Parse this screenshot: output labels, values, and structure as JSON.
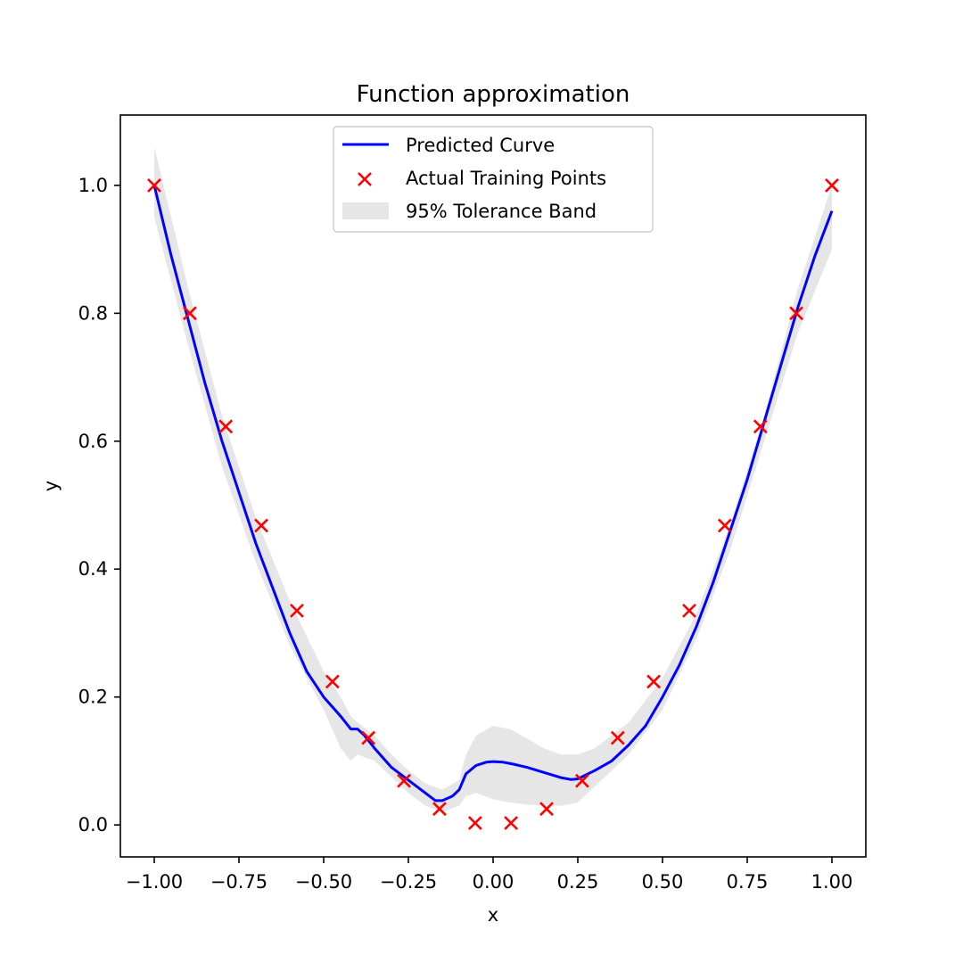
{
  "chart_data": {
    "type": "line",
    "title": "Function approximation",
    "xlabel": "x",
    "ylabel": "y",
    "xlim": [
      -1.1,
      1.1
    ],
    "ylim": [
      -0.05,
      1.11
    ],
    "x_ticks": [
      -1.0,
      -0.75,
      -0.5,
      -0.25,
      0.0,
      0.25,
      0.5,
      0.75,
      1.0
    ],
    "x_tick_labels": [
      "−1.00",
      "−0.75",
      "−0.50",
      "−0.25",
      "0.00",
      "0.25",
      "0.50",
      "0.75",
      "1.00"
    ],
    "y_ticks": [
      0.0,
      0.2,
      0.4,
      0.6,
      0.8,
      1.0
    ],
    "y_tick_labels": [
      "0.0",
      "0.2",
      "0.4",
      "0.6",
      "0.8",
      "1.0"
    ],
    "grid": false,
    "legend_position": "top-center",
    "series": [
      {
        "name": "Predicted Curve",
        "kind": "line",
        "color": "#0000ff",
        "points": [
          [
            -1.0,
            1.0
          ],
          [
            -0.95,
            0.89
          ],
          [
            -0.9,
            0.79
          ],
          [
            -0.85,
            0.69
          ],
          [
            -0.8,
            0.6
          ],
          [
            -0.75,
            0.52
          ],
          [
            -0.7,
            0.44
          ],
          [
            -0.65,
            0.37
          ],
          [
            -0.6,
            0.3
          ],
          [
            -0.55,
            0.24
          ],
          [
            -0.5,
            0.2
          ],
          [
            -0.45,
            0.17
          ],
          [
            -0.42,
            0.15
          ],
          [
            -0.4,
            0.15
          ],
          [
            -0.38,
            0.14
          ],
          [
            -0.35,
            0.12
          ],
          [
            -0.3,
            0.09
          ],
          [
            -0.25,
            0.07
          ],
          [
            -0.2,
            0.05
          ],
          [
            -0.17,
            0.038
          ],
          [
            -0.15,
            0.038
          ],
          [
            -0.12,
            0.045
          ],
          [
            -0.1,
            0.055
          ],
          [
            -0.08,
            0.08
          ],
          [
            -0.05,
            0.093
          ],
          [
            -0.02,
            0.098
          ],
          [
            0.0,
            0.099
          ],
          [
            0.03,
            0.098
          ],
          [
            0.06,
            0.095
          ],
          [
            0.1,
            0.09
          ],
          [
            0.15,
            0.082
          ],
          [
            0.2,
            0.074
          ],
          [
            0.23,
            0.071
          ],
          [
            0.25,
            0.072
          ],
          [
            0.3,
            0.085
          ],
          [
            0.35,
            0.1
          ],
          [
            0.4,
            0.125
          ],
          [
            0.45,
            0.155
          ],
          [
            0.5,
            0.2
          ],
          [
            0.55,
            0.25
          ],
          [
            0.6,
            0.31
          ],
          [
            0.65,
            0.38
          ],
          [
            0.7,
            0.46
          ],
          [
            0.75,
            0.54
          ],
          [
            0.8,
            0.63
          ],
          [
            0.85,
            0.72
          ],
          [
            0.9,
            0.81
          ],
          [
            0.95,
            0.89
          ],
          [
            1.0,
            0.96
          ]
        ]
      },
      {
        "name": "Actual Training Points",
        "kind": "scatter",
        "color": "#ff0000",
        "points": [
          [
            -1.0,
            1.0
          ],
          [
            -0.895,
            0.8
          ],
          [
            -0.789,
            0.623
          ],
          [
            -0.684,
            0.468
          ],
          [
            -0.579,
            0.335
          ],
          [
            -0.474,
            0.224
          ],
          [
            -0.368,
            0.136
          ],
          [
            -0.263,
            0.069
          ],
          [
            -0.158,
            0.025
          ],
          [
            -0.053,
            0.003
          ],
          [
            0.053,
            0.003
          ],
          [
            0.158,
            0.025
          ],
          [
            0.263,
            0.069
          ],
          [
            0.368,
            0.136
          ],
          [
            0.474,
            0.224
          ],
          [
            0.579,
            0.335
          ],
          [
            0.684,
            0.468
          ],
          [
            0.789,
            0.623
          ],
          [
            0.895,
            0.8
          ],
          [
            1.0,
            1.0
          ]
        ]
      },
      {
        "name": "95% Tolerance Band",
        "kind": "band",
        "color": "#e6e6e6",
        "x": [
          -1.0,
          -0.9,
          -0.8,
          -0.7,
          -0.6,
          -0.5,
          -0.45,
          -0.42,
          -0.4,
          -0.35,
          -0.3,
          -0.25,
          -0.2,
          -0.15,
          -0.1,
          -0.08,
          -0.05,
          0.0,
          0.05,
          0.1,
          0.15,
          0.2,
          0.25,
          0.3,
          0.4,
          0.5,
          0.6,
          0.7,
          0.8,
          0.9,
          1.0
        ],
        "upper": [
          1.06,
          0.84,
          0.64,
          0.48,
          0.35,
          0.24,
          0.2,
          0.17,
          0.16,
          0.14,
          0.11,
          0.085,
          0.065,
          0.055,
          0.07,
          0.11,
          0.14,
          0.155,
          0.15,
          0.135,
          0.12,
          0.11,
          0.11,
          0.12,
          0.16,
          0.23,
          0.33,
          0.47,
          0.64,
          0.84,
          1.0
        ],
        "lower": [
          0.95,
          0.75,
          0.56,
          0.41,
          0.28,
          0.18,
          0.12,
          0.1,
          0.11,
          0.1,
          0.075,
          0.05,
          0.03,
          0.02,
          0.03,
          0.045,
          0.05,
          0.04,
          0.035,
          0.032,
          0.03,
          0.03,
          0.035,
          0.06,
          0.11,
          0.18,
          0.29,
          0.43,
          0.6,
          0.77,
          0.9
        ]
      }
    ]
  }
}
